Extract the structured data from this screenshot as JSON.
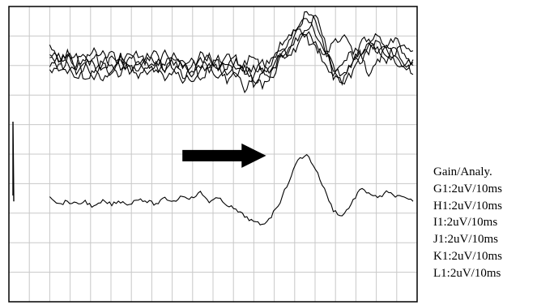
{
  "chart_data": {
    "type": "line",
    "title": "",
    "xlabel": "",
    "ylabel": "",
    "grid": true,
    "description_units": "traces drawn on a 20x10 reference grid, no numeric axis labels shown",
    "x_divisions": 20,
    "y_divisions": 10,
    "series": [
      {
        "values": [
          1.3,
          1.9,
          1.6,
          2.1,
          1.8,
          1.5,
          2.2,
          1.7,
          1.9,
          1.6,
          2.0,
          1.8,
          1.5,
          2.3,
          1.7,
          1.9,
          2.4,
          1.6,
          1.8,
          2.0,
          1.6,
          2.2,
          1.9,
          1.7,
          2.1,
          2.5,
          1.8,
          1.6,
          1.4,
          0.8,
          0.3,
          1.2,
          2.4,
          2.6,
          2.0,
          1.5,
          2.3,
          1.9,
          1.4,
          1.7,
          2.0,
          1.8
        ]
      },
      {
        "values": [
          2.0,
          1.6,
          1.9,
          2.4,
          2.0,
          1.7,
          1.5,
          2.1,
          2.3,
          1.8,
          1.6,
          2.0,
          2.2,
          1.9,
          1.7,
          2.1,
          1.8,
          2.5,
          2.1,
          1.9,
          2.6,
          2.2,
          2.8,
          2.3,
          1.9,
          2.2,
          1.6,
          1.2,
          0.6,
          0.4,
          0.9,
          1.5,
          2.0,
          2.6,
          2.3,
          1.8,
          1.2,
          1.0,
          1.5,
          1.9,
          2.2,
          2.0
        ]
      },
      {
        "values": [
          1.7,
          2.2,
          1.8,
          1.5,
          2.6,
          2.2,
          1.9,
          2.4,
          1.8,
          2.0,
          2.3,
          1.7,
          2.0,
          2.4,
          2.2,
          1.8,
          2.3,
          2.0,
          1.7,
          2.2,
          1.9,
          2.4,
          2.0,
          2.6,
          2.3,
          1.9,
          1.3,
          1.0,
          0.8,
          1.1,
          1.4,
          1.6,
          1.3,
          1.0,
          1.4,
          1.7,
          1.3,
          1.5,
          1.8,
          1.6,
          1.3,
          1.5
        ]
      },
      {
        "values": [
          1.5,
          1.8,
          2.3,
          1.9,
          1.6,
          2.0,
          2.5,
          2.1,
          1.7,
          2.3,
          1.9,
          2.4,
          2.0,
          1.6,
          2.2,
          2.5,
          2.0,
          1.8,
          2.2,
          1.6,
          2.3,
          1.8,
          2.1,
          2.4,
          2.7,
          2.3,
          1.7,
          1.4,
          1.1,
          0.9,
          1.3,
          1.9,
          2.4,
          2.0,
          1.6,
          1.9,
          1.5,
          1.2,
          1.7,
          1.4,
          1.9,
          2.3
        ]
      },
      {
        "values": [
          2.2,
          1.9,
          1.6,
          2.2,
          2.0,
          2.4,
          1.8,
          1.5,
          2.1,
          1.9,
          2.4,
          2.1,
          1.8,
          2.1,
          1.9,
          2.3,
          2.6,
          2.2,
          2.0,
          2.5,
          2.1,
          1.7,
          2.3,
          2.0,
          2.2,
          1.7,
          1.5,
          1.6,
          0.7,
          0.2,
          0.5,
          1.4,
          2.1,
          2.4,
          2.0,
          1.3,
          1.0,
          1.6,
          1.3,
          1.1,
          1.6,
          1.9
        ]
      },
      {
        "values": [
          6.4,
          6.7,
          6.6,
          6.7,
          6.6,
          6.8,
          6.6,
          6.7,
          6.6,
          6.7,
          6.5,
          6.6,
          6.7,
          6.5,
          6.6,
          6.4,
          6.5,
          6.3,
          6.6,
          6.5,
          6.7,
          6.9,
          7.1,
          7.3,
          7.4,
          7.1,
          6.6,
          5.9,
          5.2,
          5.0,
          5.5,
          6.2,
          6.9,
          7.1,
          6.7,
          6.2,
          6.3,
          6.5,
          6.3,
          6.4,
          6.5,
          6.6
        ]
      }
    ],
    "annotations": [
      {
        "type": "arrow",
        "direction": "right"
      }
    ]
  },
  "legend": {
    "title": "Gain/Analy.",
    "items": [
      "G1:2uV/10ms",
      "H1:2uV/10ms",
      "I1:2uV/10ms",
      "J1:2uV/10ms",
      "K1:2uV/10ms",
      "L1:2uV/10ms"
    ]
  },
  "colors": {
    "trace": "#000000",
    "grid": "#c8c8c8",
    "frame": "#000000"
  }
}
